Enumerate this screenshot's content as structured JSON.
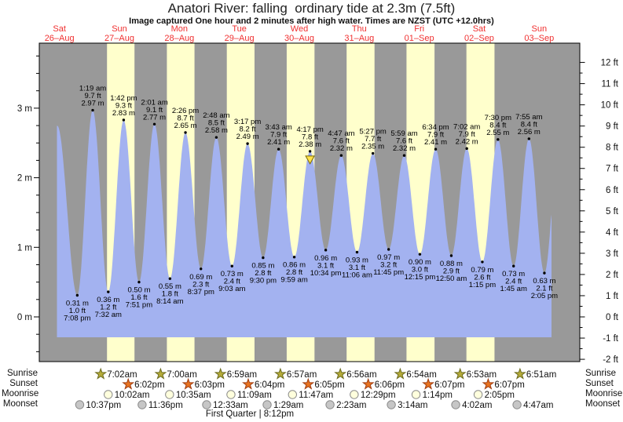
{
  "title": "Anatori River: falling  ordinary tide at 2.3m (7.5ft)",
  "subtitle": "Image captured One hour and 2 minutes after high water. Times are NZST (UTC +12.0hrs)",
  "moon_phase": "First Quarter | 8:12pm",
  "colors": {
    "night_band": "#999999",
    "daylight_band": "#ffffcc",
    "tide_fill": "#a3b2f0",
    "day_label": "#f03030",
    "axis_text": "#111111",
    "sunrise_star": "#b5ab39",
    "sunrise_star_edge": "#6b6b1f",
    "sunset_star": "#e8731f",
    "sunset_star_edge": "#a03c10",
    "moonrise_circle": "#ffffdd",
    "moonset_circle": "#c6c6c6",
    "icon_edge": "#8a8a8a",
    "marker_fill": "#ffe14a",
    "marker_edge": "#7a6a00"
  },
  "days": [
    {
      "name": "Sat",
      "date": "26–Aug"
    },
    {
      "name": "Sun",
      "date": "27–Aug"
    },
    {
      "name": "Mon",
      "date": "28–Aug"
    },
    {
      "name": "Tue",
      "date": "29–Aug"
    },
    {
      "name": "Wed",
      "date": "30–Aug"
    },
    {
      "name": "Thu",
      "date": "31–Aug"
    },
    {
      "name": "Fri",
      "date": "01–Sep"
    },
    {
      "name": "Sat",
      "date": "02–Sep"
    },
    {
      "name": "Sun",
      "date": "03–Sep"
    }
  ],
  "chart_data": {
    "type": "area",
    "title": "Anatori River tide heights",
    "x_axis_unit": "days (Sat 26-Aug to Sun 03-Sep)",
    "y_axis_left": {
      "unit": "m",
      "tick_values": [
        0,
        1,
        2,
        3
      ],
      "tick_labels": [
        "0 m",
        "1 m",
        "2 m",
        "3 m"
      ],
      "minor_step": 0.25
    },
    "y_axis_right": {
      "unit": "ft",
      "tick_values": [
        -2,
        -1,
        0,
        1,
        2,
        3,
        4,
        5,
        6,
        7,
        8,
        9,
        10,
        11,
        12
      ],
      "tick_labels": [
        "-2 ft",
        "-1 ft",
        "0 ft",
        "1 ft",
        "2 ft",
        "3 ft",
        "4 ft",
        "5 ft",
        "6 ft",
        "7 ft",
        "8 ft",
        "9 ft",
        "10 ft",
        "11 ft",
        "12 ft"
      ],
      "minor_step": 0.5
    },
    "series_start": {
      "d": 0.463,
      "m": 2.75
    },
    "series_end": {
      "d": 8.706,
      "virtual_next_high": {
        "d": 8.847,
        "m": 2.72
      }
    },
    "current_marker_index": 15,
    "extremes": [
      {
        "kind": "low",
        "time": "7:08 pm",
        "m": "0.31",
        "ft": "1.0",
        "d": 0.7972
      },
      {
        "kind": "high",
        "time": "1:19 am",
        "m": "2.97",
        "ft": "9.7",
        "d": 1.0549
      },
      {
        "kind": "low",
        "time": "7:32 am",
        "m": "0.36",
        "ft": "1.2",
        "d": 1.3139
      },
      {
        "kind": "high",
        "time": "1:42 pm",
        "m": "2.83",
        "ft": "9.3",
        "d": 1.5708
      },
      {
        "kind": "low",
        "time": "7:51 pm",
        "m": "0.50",
        "ft": "1.6",
        "d": 1.8271
      },
      {
        "kind": "high",
        "time": "2:01 am",
        "m": "2.77",
        "ft": "9.1",
        "d": 2.084
      },
      {
        "kind": "low",
        "time": "8:14 am",
        "m": "0.55",
        "ft": "1.8",
        "d": 2.3431
      },
      {
        "kind": "high",
        "time": "2:26 pm",
        "m": "2.65",
        "ft": "8.7",
        "d": 2.6014
      },
      {
        "kind": "low",
        "time": "8:37 pm",
        "m": "0.69",
        "ft": "2.3",
        "d": 2.859
      },
      {
        "kind": "high",
        "time": "2:48 am",
        "m": "2.58",
        "ft": "8.5",
        "d": 3.1167
      },
      {
        "kind": "low",
        "time": "9:03 am",
        "m": "0.73",
        "ft": "2.4",
        "d": 3.3771
      },
      {
        "kind": "high",
        "time": "3:17 pm",
        "m": "2.49",
        "ft": "8.2",
        "d": 3.6368
      },
      {
        "kind": "low",
        "time": "9:30 pm",
        "m": "0.85",
        "ft": "2.8",
        "d": 3.8958
      },
      {
        "kind": "high",
        "time": "3:43 am",
        "m": "2.41",
        "ft": "7.9",
        "d": 4.1549
      },
      {
        "kind": "low",
        "time": "9:59 am",
        "m": "0.86",
        "ft": "2.8",
        "d": 4.416
      },
      {
        "kind": "high",
        "time": "4:17 pm",
        "m": "2.38",
        "ft": "7.8",
        "d": 4.6785
      },
      {
        "kind": "low",
        "time": "10:34 pm",
        "m": "0.96",
        "ft": "3.1",
        "d": 4.9403
      },
      {
        "kind": "high",
        "time": "4:47 am",
        "m": "2.32",
        "ft": "7.6",
        "d": 5.1993
      },
      {
        "kind": "low",
        "time": "11:06 am",
        "m": "0.93",
        "ft": "3.1",
        "d": 5.4625
      },
      {
        "kind": "high",
        "time": "5:27 pm",
        "m": "2.35",
        "ft": "7.7",
        "d": 5.7271
      },
      {
        "kind": "low",
        "time": "11:45 pm",
        "m": "0.97",
        "ft": "3.2",
        "d": 5.9896
      },
      {
        "kind": "high",
        "time": "5:59 am",
        "m": "2.32",
        "ft": "7.6",
        "d": 6.2493
      },
      {
        "kind": "low",
        "time": "12:15 pm",
        "m": "0.90",
        "ft": "3.0",
        "d": 6.5104
      },
      {
        "kind": "high",
        "time": "6:34 pm",
        "m": "2.41",
        "ft": "7.9",
        "d": 6.7736
      },
      {
        "kind": "low",
        "time": "12:50 am",
        "m": "0.88",
        "ft": "2.9",
        "d": 7.0347
      },
      {
        "kind": "high",
        "time": "7:02 am",
        "m": "2.42",
        "ft": "7.9",
        "d": 7.2931
      },
      {
        "kind": "low",
        "time": "1:15 pm",
        "m": "0.79",
        "ft": "2.6",
        "d": 7.5521
      },
      {
        "kind": "high",
        "time": "7:30 pm",
        "m": "2.55",
        "ft": "8.4",
        "d": 7.8125
      },
      {
        "kind": "low",
        "time": "1:45 am",
        "m": "0.73",
        "ft": "2.4",
        "d": 8.0729
      },
      {
        "kind": "high",
        "time": "7:55 am",
        "m": "2.56",
        "ft": "8.4",
        "d": 8.3299
      },
      {
        "kind": "low",
        "time": "2:05 pm",
        "m": "0.63",
        "ft": "2.1",
        "d": 8.5868
      }
    ]
  },
  "astro": {
    "labels": {
      "sunrise": "Sunrise",
      "sunset": "Sunset",
      "moonrise": "Moonrise",
      "moonset": "Moonset"
    },
    "sunrise": {
      "times": [
        "7:02am",
        "7:00am",
        "6:59am",
        "6:57am",
        "6:56am",
        "6:54am",
        "6:53am",
        "6:51am"
      ],
      "d": [
        1.2931,
        2.2917,
        3.291,
        4.2896,
        5.2889,
        6.2875,
        7.2868,
        8.2854
      ]
    },
    "sunset": {
      "times": [
        "6:02pm",
        "6:03pm",
        "6:04pm",
        "6:05pm",
        "6:06pm",
        "6:07pm",
        "6:07pm"
      ],
      "d": [
        1.7514,
        2.7521,
        3.7528,
        4.7535,
        5.7542,
        6.7549,
        7.7549
      ]
    },
    "moonrise": {
      "times": [
        "10:02am",
        "10:35am",
        "11:09am",
        "11:47am",
        "12:29pm",
        "1:14pm",
        "2:05pm"
      ],
      "d": [
        1.4181,
        2.441,
        3.4646,
        4.491,
        5.5201,
        6.5514,
        7.5868
      ]
    },
    "moonset": {
      "times": [
        "10:37pm",
        "11:36pm",
        "12:33am",
        "1:29am",
        "2:23am",
        "3:14am",
        "4:02am",
        "4:47am"
      ],
      "d": [
        0.9424,
        1.9833,
        3.059,
        4.068,
        5.117,
        6.139,
        7.213,
        8.235
      ]
    }
  }
}
